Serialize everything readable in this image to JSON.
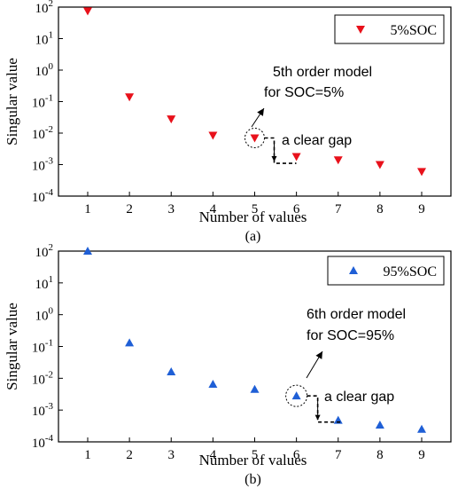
{
  "chart_data": [
    {
      "type": "scatter",
      "panel_label": "(a)",
      "xlabel": "Number of values",
      "ylabel": "Singular value",
      "x_ticks": [
        "1",
        "2",
        "3",
        "4",
        "5",
        "6",
        "7",
        "8",
        "9"
      ],
      "y_ticks": [
        {
          "base": "10",
          "exp": "-4"
        },
        {
          "base": "10",
          "exp": "-3"
        },
        {
          "base": "10",
          "exp": "-2"
        },
        {
          "base": "10",
          "exp": "-1"
        },
        {
          "base": "10",
          "exp": "0"
        },
        {
          "base": "10",
          "exp": "1"
        },
        {
          "base": "10",
          "exp": "2"
        }
      ],
      "yscale": "log",
      "xlim": [
        0.3,
        9.7
      ],
      "ylim": [
        0.0001,
        100
      ],
      "legend_position": "top-right",
      "grid": false,
      "series": [
        {
          "name": "5%SOC",
          "marker": "triangle-down",
          "color": "#e8111b",
          "x": [
            1,
            2,
            3,
            4,
            5,
            6,
            7,
            8,
            9
          ],
          "y": [
            75,
            0.14,
            0.028,
            0.0085,
            0.007,
            0.0018,
            0.0014,
            0.001,
            0.0006
          ]
        }
      ],
      "annotations": {
        "model_line1": "5th order model",
        "model_line2": "for SOC=5%",
        "gap_label": "a clear gap",
        "circled_point": {
          "x": 5,
          "y": 0.007
        },
        "gap_low": 0.0011
      }
    },
    {
      "type": "scatter",
      "panel_label": "(b)",
      "xlabel": "Number of values",
      "ylabel": "Singular value",
      "x_ticks": [
        "1",
        "2",
        "3",
        "4",
        "5",
        "6",
        "7",
        "8",
        "9"
      ],
      "y_ticks": [
        {
          "base": "10",
          "exp": "-4"
        },
        {
          "base": "10",
          "exp": "-3"
        },
        {
          "base": "10",
          "exp": "-2"
        },
        {
          "base": "10",
          "exp": "-1"
        },
        {
          "base": "10",
          "exp": "0"
        },
        {
          "base": "10",
          "exp": "1"
        },
        {
          "base": "10",
          "exp": "2"
        }
      ],
      "yscale": "log",
      "xlim": [
        0.3,
        9.7
      ],
      "ylim": [
        0.0001,
        100
      ],
      "legend_position": "top-right",
      "grid": false,
      "series": [
        {
          "name": "95%SOC",
          "marker": "triangle-up",
          "color": "#1f5fd6",
          "x": [
            1,
            2,
            3,
            4,
            5,
            6,
            7,
            8,
            9
          ],
          "y": [
            100,
            0.13,
            0.016,
            0.0065,
            0.0045,
            0.0028,
            0.00048,
            0.00034,
            0.00025
          ]
        }
      ],
      "annotations": {
        "model_line1": "6th order model",
        "model_line2": "for SOC=95%",
        "gap_label": "a clear gap",
        "circled_point": {
          "x": 6,
          "y": 0.0028
        },
        "gap_low": 0.00042
      }
    }
  ]
}
